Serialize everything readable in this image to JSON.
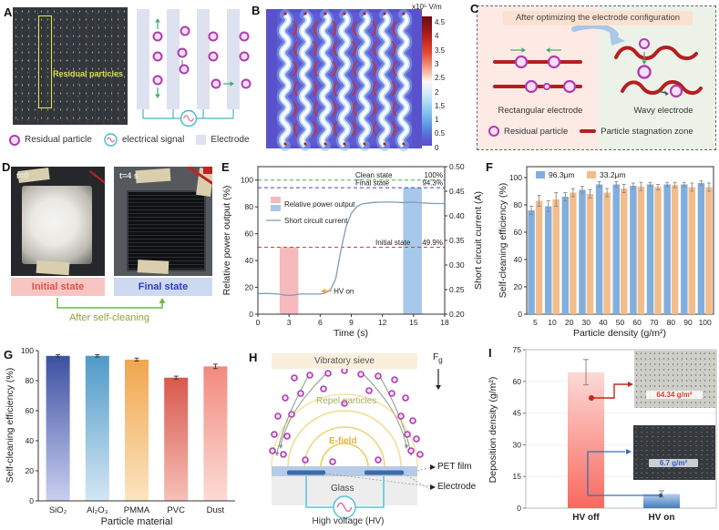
{
  "panels": {
    "A": {
      "label": "A",
      "photo_annotation": "Residual particles",
      "legend": [
        {
          "label": "Residual particle"
        },
        {
          "label": "electrical signal"
        },
        {
          "label": "Electrode"
        }
      ]
    },
    "B": {
      "label": "B",
      "colorbar": {
        "unit": "x10⁵ V/m",
        "ticks": [
          "4.5",
          "4",
          "3.5",
          "3",
          "2.5",
          "2",
          "1.5",
          "1",
          "0.5",
          "0"
        ]
      }
    },
    "C": {
      "label": "C",
      "title": "After optimizing the electrode configuration",
      "left_caption": "Rectangular electrode",
      "right_caption": "Wavy electrode",
      "legend": [
        {
          "label": "Residual particle"
        },
        {
          "label": "Particle stagnation zone"
        }
      ]
    },
    "D": {
      "label": "D",
      "time_initial": "t=0",
      "time_final": "t=4 s",
      "initial_state": "Initial state",
      "final_state": "Final state",
      "caption": "After self-cleaning"
    },
    "E": {
      "label": "E"
    },
    "F": {
      "label": "F"
    },
    "G": {
      "label": "G"
    },
    "H": {
      "label": "H",
      "sieve_label": "Vibratory sieve",
      "gravity_label_main": "F",
      "gravity_label_sub": "g",
      "repel_label": "Repel particles",
      "efield_label": "E-field",
      "pet_label": "PET film",
      "glass_label": "Glass",
      "electrode_label": "Electrode",
      "hv_label": "High voltage (HV)"
    },
    "I": {
      "label": "I"
    }
  },
  "chart_data": [
    {
      "id": "E",
      "type": "line",
      "xlabel": "Time (s)",
      "ylabel_left": "Relative power output (%)",
      "ylabel_right": "Short circuit current (A)",
      "xlim": [
        0,
        18
      ],
      "xticks": [
        0,
        3,
        6,
        9,
        12,
        15,
        18
      ],
      "ylim_left": [
        0,
        110
      ],
      "yticks_left": [
        0,
        20,
        40,
        60,
        80,
        100
      ],
      "ylim_right": [
        0.2,
        0.5
      ],
      "yticks_right": [
        "0.20",
        "0.25",
        "0.30",
        "0.35",
        "0.40",
        "0.45",
        "0.50"
      ],
      "series": [
        {
          "name": "Short circuit current",
          "axis": "right",
          "color": "#7f9db9",
          "x": [
            0,
            1,
            2,
            2.5,
            3,
            3.5,
            4,
            5,
            6,
            6.5,
            7,
            7.5,
            8,
            8.5,
            9,
            9.5,
            10,
            11,
            12,
            13,
            14,
            15,
            16,
            17,
            18
          ],
          "y": [
            0.242,
            0.242,
            0.241,
            0.239,
            0.238,
            0.239,
            0.241,
            0.241,
            0.241,
            0.243,
            0.25,
            0.272,
            0.33,
            0.378,
            0.405,
            0.418,
            0.424,
            0.427,
            0.428,
            0.428,
            0.427,
            0.428,
            0.426,
            0.425,
            0.425
          ]
        }
      ],
      "highlight_bars": [
        {
          "name": "Relative power output initial",
          "x0": 2.1,
          "x1": 3.9,
          "value": 49.9,
          "color": "#f5b9bd"
        },
        {
          "name": "Relative power output final",
          "x0": 14.0,
          "x1": 15.8,
          "value": 94.3,
          "color": "#a6c8ea"
        }
      ],
      "reference_lines": [
        {
          "label": "Clean state",
          "value_label": "100%",
          "value": 100,
          "color": "#3cb54a"
        },
        {
          "label": "Final state",
          "value_label": "94.3%",
          "value": 94.3,
          "color": "#3a46c4"
        },
        {
          "label": "Initial state",
          "value_label": "49.9%",
          "value": 49.9,
          "color": "#e43a3a"
        }
      ],
      "annotation": {
        "text": "HV on",
        "color": "#f49c36",
        "x": 7.3,
        "y": 0.247
      },
      "legend": [
        {
          "label": "Relative power output",
          "swatches": [
            "#f5b9bd",
            "#a6c8ea"
          ]
        },
        {
          "label": "Short circuit current",
          "line_color": "#7f9db9"
        }
      ]
    },
    {
      "id": "F",
      "type": "bar",
      "xlabel": "Particle density (g/m²)",
      "ylabel": "Self-cleaning efficiency (%)",
      "categories": [
        "5",
        "10",
        "20",
        "30",
        "40",
        "50",
        "60",
        "70",
        "80",
        "90",
        "100"
      ],
      "yticks": [
        0,
        20,
        40,
        60,
        80,
        100
      ],
      "ylim": [
        0,
        108
      ],
      "series": [
        {
          "name": "96.3μm",
          "color": "#82aede",
          "values": [
            76,
            79,
            86,
            91,
            95,
            95,
            94,
            95,
            95,
            95,
            96
          ],
          "errors": [
            3,
            4,
            3,
            2.5,
            2,
            2,
            2,
            1.5,
            1.5,
            1.5,
            1.5
          ]
        },
        {
          "name": "33.2μm",
          "color": "#f2bd8b",
          "values": [
            83,
            84,
            89,
            88,
            89,
            92,
            93.5,
            93,
            94.5,
            93,
            93
          ],
          "errors": [
            4,
            5,
            3,
            3,
            3,
            3,
            3,
            2,
            2,
            3,
            3
          ]
        }
      ]
    },
    {
      "id": "G",
      "type": "bar",
      "xlabel": "Particle material",
      "ylabel": "Self-cleaning efficiency (%)",
      "categories": [
        "SiO₂",
        "Al₂O₃",
        "PMMA",
        "PVC",
        "Dust"
      ],
      "yticks": [
        0,
        20,
        40,
        60,
        80,
        100
      ],
      "ylim": [
        0,
        100
      ],
      "values": [
        96.5,
        96.5,
        94,
        82,
        89.5
      ],
      "errors": [
        0.8,
        0.8,
        1,
        1,
        1.5
      ],
      "bar_gradients": [
        [
          "#3d50a2",
          "#c9cff0"
        ],
        [
          "#4f9ac8",
          "#d3e6f4"
        ],
        [
          "#f0a64e",
          "#fce4c0"
        ],
        [
          "#d8584c",
          "#f6c0b8"
        ],
        [
          "#f28a7c",
          "#fcdcd6"
        ]
      ]
    },
    {
      "id": "I",
      "type": "bar",
      "ylabel": "Deposition density (g/m²)",
      "categories": [
        "HV off",
        "HV on"
      ],
      "category_colors": [
        "#e05248",
        "#3050b8"
      ],
      "yticks": [
        0,
        15,
        30,
        45,
        60,
        75
      ],
      "ylim": [
        0,
        75
      ],
      "values": [
        64.34,
        6.7
      ],
      "errors": [
        6,
        1.5
      ],
      "bar_gradients": [
        [
          "#fcd9d6",
          "#f9695e"
        ],
        [
          "#b7d0ec",
          "#447bbc"
        ]
      ],
      "insets": [
        {
          "label": "64.34 g/m²",
          "label_color": "#e0382c"
        },
        {
          "label": "6.7 g/m²",
          "label_color": "#3a5fc0"
        }
      ]
    }
  ]
}
